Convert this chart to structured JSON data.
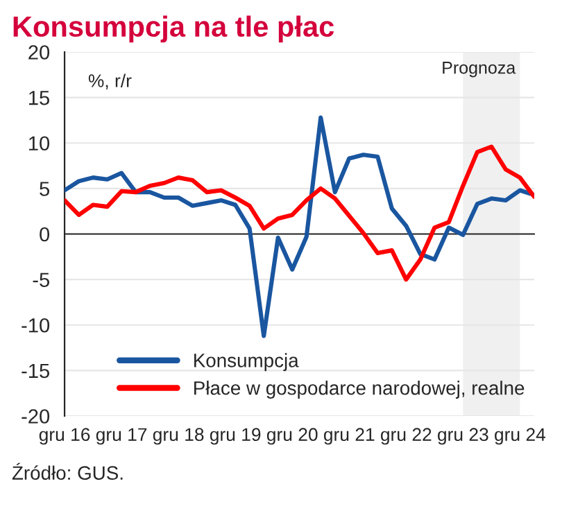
{
  "chart_data": {
    "type": "line",
    "title": "Konsumpcja na tle płac",
    "categories": [
      "gru 16",
      null,
      null,
      null,
      "gru 17",
      null,
      null,
      null,
      "gru 18",
      null,
      null,
      null,
      "gru 19",
      null,
      null,
      null,
      "gru 20",
      null,
      null,
      null,
      "gru 21",
      null,
      null,
      null,
      "gru 22",
      null,
      null,
      null,
      "gru 23",
      null,
      null,
      null,
      "gru 24",
      null
    ],
    "series": [
      {
        "name": "Konsumpcja",
        "color": "#1a56a0",
        "values": [
          4.8,
          5.8,
          6.2,
          6.0,
          6.7,
          4.6,
          4.6,
          4.0,
          4.0,
          3.1,
          3.4,
          3.7,
          3.2,
          0.6,
          -11.2,
          -0.4,
          -3.9,
          -0.3,
          12.8,
          4.6,
          8.3,
          8.7,
          8.5,
          2.8,
          0.9,
          -2.2,
          -2.8,
          0.7,
          -0.1,
          3.3,
          3.9,
          3.7,
          4.8,
          4.3
        ]
      },
      {
        "name": "Płace w gospodarce narodowej, realne",
        "color": "#ff0000",
        "values": [
          3.7,
          2.1,
          3.2,
          3.0,
          4.7,
          4.6,
          5.3,
          5.6,
          6.2,
          5.9,
          4.6,
          4.8,
          4.0,
          3.1,
          0.6,
          1.7,
          2.1,
          3.7,
          5.0,
          3.9,
          2.0,
          0.1,
          -2.1,
          -1.8,
          -5.0,
          -2.8,
          0.7,
          1.3,
          5.3,
          9.0,
          9.6,
          7.1,
          6.2,
          4.1
        ]
      }
    ],
    "ylim": [
      -20,
      20
    ],
    "yticks": [
      -20,
      -15,
      -10,
      -5,
      0,
      5,
      10,
      15,
      20
    ],
    "bands": [
      {
        "axis": "x",
        "from": "gru 23",
        "to": "gru 24",
        "label": "Prognoza",
        "color": "#f0f0f0"
      }
    ],
    "annotations": [
      "%, r/r",
      "Źródło: GUS."
    ],
    "grid": "y",
    "legend": "bottom left",
    "line_style": "solid",
    "marker": "none"
  }
}
